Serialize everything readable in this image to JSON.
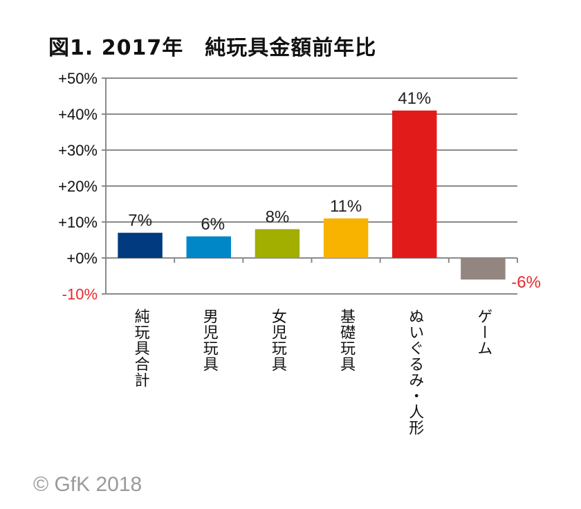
{
  "chart_data": {
    "type": "bar",
    "title": "図1. 2017年　純玩具金額前年比",
    "categories": [
      "純玩具合計",
      "男児玩具",
      "女児玩具",
      "基礎玩具",
      "ぬいぐるみ・人形",
      "ゲーム"
    ],
    "values": [
      7,
      6,
      8,
      11,
      41,
      -6
    ],
    "data_labels": [
      "7%",
      "6%",
      "8%",
      "11%",
      "41%",
      "-6%"
    ],
    "colors": [
      "#023a7f",
      "#0087c8",
      "#a2ae00",
      "#f8b200",
      "#e11b1a",
      "#938580"
    ],
    "negative_label_color": "#e8282b",
    "ylim": [
      -10,
      50
    ],
    "yticks": [
      50,
      40,
      30,
      20,
      10,
      0,
      -10
    ],
    "ytick_labels": [
      "+50%",
      "+40%",
      "+30%",
      "+20%",
      "+10%",
      "+0%",
      "-10%"
    ],
    "grid": true,
    "xlabel": "",
    "ylabel": ""
  },
  "footer": "© GfK 2018"
}
